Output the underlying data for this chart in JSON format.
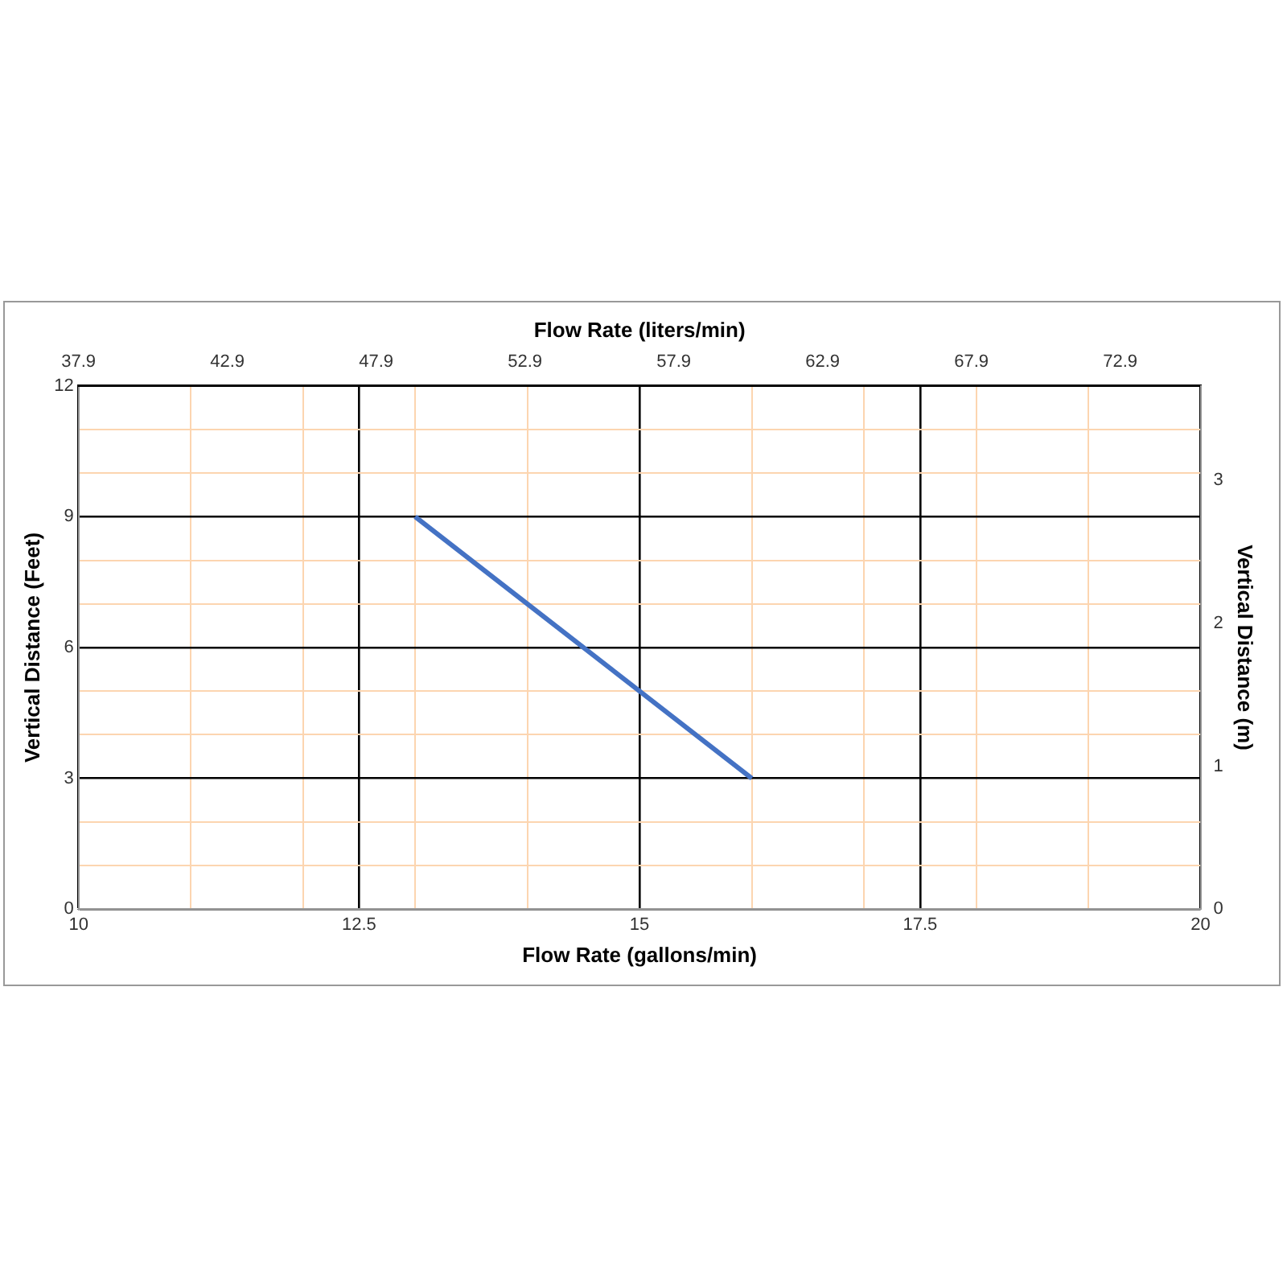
{
  "chart_data": {
    "type": "line",
    "xlabel": "Flow Rate (gallons/min)",
    "x2label": "Flow Rate (liters/min)",
    "ylabel": "Vertical Distance (Feet)",
    "y2label": "Vertical Distance (m)",
    "x": [
      13,
      16
    ],
    "values": [
      9,
      3
    ],
    "color": "#4472c4",
    "marker": "none",
    "grid": true,
    "xlim": [
      10,
      20
    ],
    "xticks": [
      10,
      {
        "value": 11,
        "label": null
      },
      {
        "value": 12,
        "label": null
      },
      12.5,
      {
        "value": 13,
        "label": null
      },
      {
        "value": 14,
        "label": null
      },
      15,
      {
        "value": 16,
        "label": null
      },
      {
        "value": 17,
        "label": null
      },
      17.5,
      {
        "value": 18,
        "label": null
      },
      {
        "value": 19,
        "label": null
      },
      20
    ],
    "ylim": [
      0,
      12
    ],
    "yticks": [
      0,
      {
        "value": 1,
        "label": null
      },
      {
        "value": 2,
        "label": null
      },
      3,
      {
        "value": 4,
        "label": null
      },
      {
        "value": 5,
        "label": null
      },
      6,
      {
        "value": 7,
        "label": null
      },
      {
        "value": 8,
        "label": null
      },
      9,
      {
        "value": 10,
        "label": null
      },
      {
        "value": 11,
        "label": null
      },
      12
    ],
    "x2lim": [
      37.9,
      75.6
    ],
    "x2ticks": [
      37.9,
      42.9,
      47.9,
      52.9,
      57.9,
      62.9,
      67.9,
      72.9
    ],
    "y2lim": [
      0,
      3.66
    ],
    "y2ticks": [
      0,
      1,
      2,
      3
    ]
  }
}
